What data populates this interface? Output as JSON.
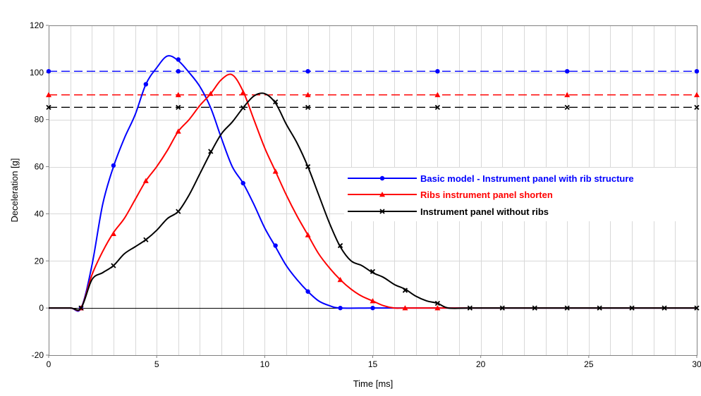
{
  "chart_data": {
    "type": "line",
    "xlabel": "Time [ms]",
    "ylabel": "Deceleration [g]",
    "xlim": [
      0,
      30
    ],
    "ylim": [
      -20,
      120
    ],
    "xticks": [
      0,
      5,
      10,
      15,
      20,
      25,
      30
    ],
    "yticks": [
      -20,
      0,
      20,
      40,
      60,
      80,
      100,
      120
    ],
    "x_minor_step": 1,
    "grid": true,
    "legend_position": "right",
    "series": [
      {
        "name": "Basic model - Instrument panel with rib structure",
        "color": "#0000ff",
        "marker": "circle",
        "points": [
          [
            0,
            0
          ],
          [
            1,
            0
          ],
          [
            1.5,
            0
          ],
          [
            2,
            18
          ],
          [
            2.5,
            44
          ],
          [
            3,
            60
          ],
          [
            3.5,
            72
          ],
          [
            4,
            82
          ],
          [
            4.5,
            95
          ],
          [
            5,
            102
          ],
          [
            5.5,
            107
          ],
          [
            6,
            105
          ],
          [
            6.5,
            100
          ],
          [
            7,
            94
          ],
          [
            7.5,
            85
          ],
          [
            8,
            72
          ],
          [
            8.5,
            60
          ],
          [
            9,
            53
          ],
          [
            9.5,
            44
          ],
          [
            10,
            34
          ],
          [
            10.5,
            26
          ],
          [
            11,
            18
          ],
          [
            11.5,
            12
          ],
          [
            12,
            7
          ],
          [
            12.5,
            3
          ],
          [
            13,
            1
          ],
          [
            13.5,
            0
          ],
          [
            15,
            0
          ],
          [
            16.5,
            0
          ],
          [
            18,
            0
          ],
          [
            19.5,
            0
          ],
          [
            21,
            0
          ],
          [
            22.5,
            0
          ],
          [
            24,
            0
          ],
          [
            25.5,
            0
          ],
          [
            27,
            0
          ],
          [
            28.5,
            0
          ],
          [
            30,
            0
          ]
        ],
        "marker_points": [
          [
            1.5,
            0
          ],
          [
            3,
            60.5
          ],
          [
            4.5,
            95
          ],
          [
            6,
            105.5
          ],
          [
            9,
            53
          ],
          [
            10.5,
            26.5
          ],
          [
            12,
            7
          ],
          [
            13.5,
            0
          ],
          [
            15,
            0
          ]
        ]
      },
      {
        "name": "Ribs instrument panel  shorten",
        "color": "#ff0000",
        "marker": "triangle",
        "points": [
          [
            0,
            0
          ],
          [
            1,
            0
          ],
          [
            1.5,
            0
          ],
          [
            2,
            14
          ],
          [
            2.5,
            24
          ],
          [
            3,
            32
          ],
          [
            3.5,
            38
          ],
          [
            4,
            46
          ],
          [
            4.5,
            54
          ],
          [
            5,
            60
          ],
          [
            5.5,
            67
          ],
          [
            6,
            75
          ],
          [
            6.5,
            80
          ],
          [
            7,
            86
          ],
          [
            7.5,
            91
          ],
          [
            8,
            97
          ],
          [
            8.5,
            99
          ],
          [
            9,
            92
          ],
          [
            9.5,
            80
          ],
          [
            10,
            68
          ],
          [
            10.5,
            58
          ],
          [
            11,
            48
          ],
          [
            11.5,
            39
          ],
          [
            12,
            31
          ],
          [
            12.5,
            23
          ],
          [
            13,
            17
          ],
          [
            13.5,
            12
          ],
          [
            14,
            8
          ],
          [
            14.5,
            5
          ],
          [
            15,
            3
          ],
          [
            15.5,
            1
          ],
          [
            16,
            0
          ],
          [
            16.5,
            0
          ],
          [
            18,
            0
          ],
          [
            19.5,
            0
          ],
          [
            21,
            0
          ],
          [
            22.5,
            0
          ],
          [
            24,
            0
          ],
          [
            25.5,
            0
          ],
          [
            27,
            0
          ],
          [
            28.5,
            0
          ],
          [
            30,
            0
          ]
        ],
        "marker_points": [
          [
            1.5,
            0
          ],
          [
            3,
            31.5
          ],
          [
            4.5,
            54
          ],
          [
            6,
            75
          ],
          [
            7.5,
            91
          ],
          [
            9,
            91.5
          ],
          [
            10.5,
            58
          ],
          [
            12,
            31
          ],
          [
            13.5,
            12
          ],
          [
            15,
            3
          ],
          [
            16.5,
            0
          ],
          [
            18,
            0
          ]
        ]
      },
      {
        "name": "Instrument panel without ribs",
        "color": "#000000",
        "marker": "x",
        "points": [
          [
            0,
            0
          ],
          [
            1,
            0
          ],
          [
            1.5,
            0
          ],
          [
            2,
            12
          ],
          [
            2.5,
            15
          ],
          [
            3,
            18
          ],
          [
            3.5,
            23
          ],
          [
            4,
            26
          ],
          [
            4.5,
            29
          ],
          [
            5,
            33
          ],
          [
            5.5,
            38
          ],
          [
            6,
            41
          ],
          [
            6.5,
            48
          ],
          [
            7,
            57
          ],
          [
            7.5,
            66
          ],
          [
            8,
            74
          ],
          [
            8.5,
            79
          ],
          [
            9,
            85
          ],
          [
            9.5,
            90
          ],
          [
            10,
            91
          ],
          [
            10.5,
            87
          ],
          [
            11,
            78
          ],
          [
            11.5,
            70
          ],
          [
            12,
            60
          ],
          [
            12.5,
            48
          ],
          [
            13,
            36
          ],
          [
            13.5,
            26
          ],
          [
            14,
            20
          ],
          [
            14.5,
            18
          ],
          [
            15,
            15
          ],
          [
            15.5,
            13
          ],
          [
            16,
            10
          ],
          [
            16.5,
            8
          ],
          [
            17,
            5
          ],
          [
            17.5,
            3
          ],
          [
            18,
            2
          ],
          [
            18.5,
            0
          ],
          [
            19.5,
            0
          ],
          [
            21,
            0
          ],
          [
            22.5,
            0
          ],
          [
            24,
            0
          ],
          [
            25.5,
            0
          ],
          [
            27,
            0
          ],
          [
            28.5,
            0
          ],
          [
            30,
            0
          ]
        ],
        "marker_points": [
          [
            1.5,
            0
          ],
          [
            3,
            18
          ],
          [
            4.5,
            29
          ],
          [
            6,
            41
          ],
          [
            7.5,
            66.5
          ],
          [
            9,
            85
          ],
          [
            10.5,
            87.5
          ],
          [
            12,
            60
          ],
          [
            13.5,
            26.5
          ],
          [
            15,
            15.5
          ],
          [
            16.5,
            7.5
          ],
          [
            18,
            2
          ],
          [
            19.5,
            0
          ],
          [
            21,
            0
          ],
          [
            22.5,
            0
          ],
          [
            24,
            0
          ],
          [
            25.5,
            0
          ],
          [
            27,
            0
          ],
          [
            28.5,
            0
          ],
          [
            30,
            0
          ]
        ]
      }
    ],
    "reference_lines": [
      {
        "series": "Basic model - Instrument panel with rib structure",
        "y": 100.5,
        "color": "#0000ff",
        "marker": "circle",
        "marker_x": [
          0,
          6,
          12,
          18,
          24,
          30
        ]
      },
      {
        "series": "Ribs instrument panel  shorten",
        "y": 90.5,
        "color": "#ff0000",
        "marker": "triangle",
        "marker_x": [
          0,
          6,
          12,
          18,
          24,
          30
        ]
      },
      {
        "series": "Instrument panel without ribs",
        "y": 85.2,
        "color": "#000000",
        "marker": "x",
        "marker_x": [
          0,
          6,
          12,
          18,
          24,
          30
        ]
      }
    ]
  }
}
